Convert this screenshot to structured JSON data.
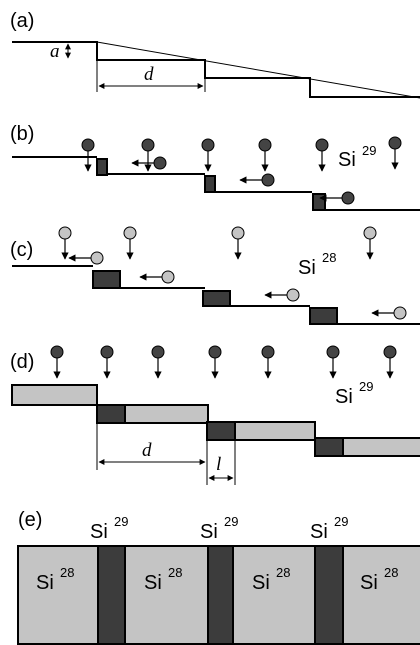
{
  "panels": [
    {
      "label": "(a)",
      "step_height": "a",
      "terrace_width": "d"
    },
    {
      "label": "(b)",
      "element": "Si",
      "isotope": "29"
    },
    {
      "label": "(c)",
      "element": "Si",
      "isotope": "28"
    },
    {
      "label": "(d)",
      "element": "Si",
      "isotope": "29",
      "terrace_width": "d",
      "stripe_width": "l"
    },
    {
      "label": "(e)",
      "top_labels": [
        {
          "element": "Si",
          "isotope": "29"
        },
        {
          "element": "Si",
          "isotope": "29"
        },
        {
          "element": "Si",
          "isotope": "29"
        }
      ],
      "block_labels": [
        {
          "element": "Si",
          "isotope": "28"
        },
        {
          "element": "Si",
          "isotope": "28"
        },
        {
          "element": "Si",
          "isotope": "28"
        },
        {
          "element": "Si",
          "isotope": "28"
        }
      ]
    }
  ]
}
